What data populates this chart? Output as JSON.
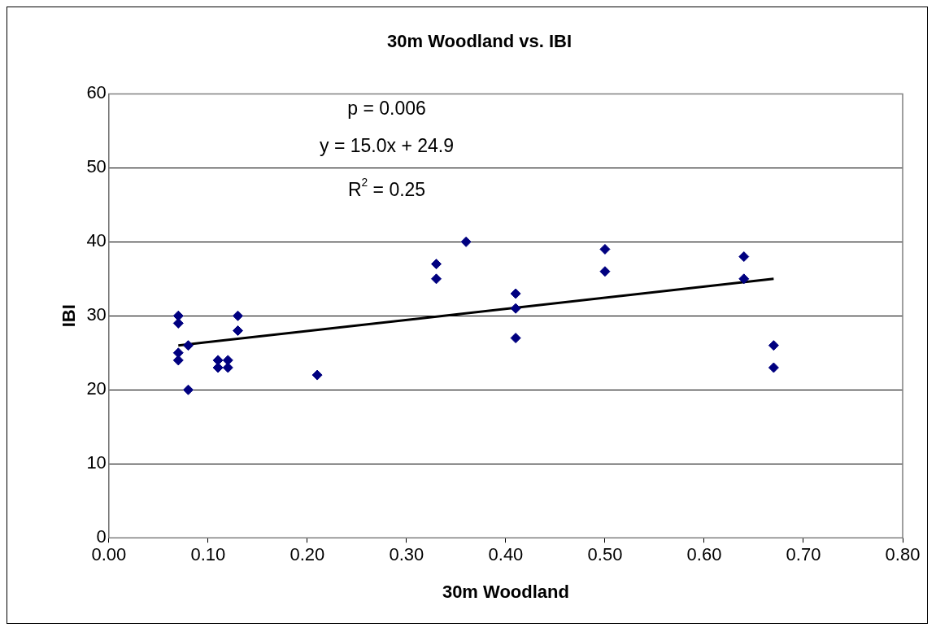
{
  "chart_data": {
    "type": "scatter",
    "title": "30m Woodland vs. IBI",
    "xlabel": "30m Woodland",
    "ylabel": "IBI",
    "series": [
      {
        "type": "scatter",
        "color": "#000080",
        "marker": "diamond",
        "x": [
          0.07,
          0.07,
          0.07,
          0.07,
          0.08,
          0.08,
          0.11,
          0.11,
          0.12,
          0.12,
          0.13,
          0.13,
          0.21,
          0.33,
          0.33,
          0.36,
          0.41,
          0.41,
          0.41,
          0.5,
          0.5,
          0.64,
          0.64,
          0.67,
          0.67
        ],
        "values": [
          30,
          29,
          25,
          24,
          26,
          20,
          24,
          23,
          24,
          23,
          30,
          28,
          22,
          37,
          35,
          40,
          33,
          31,
          27,
          39,
          36,
          38,
          35,
          26,
          23
        ]
      },
      {
        "type": "line",
        "color": "#000000",
        "line_style": "solid",
        "x": [
          0.07,
          0.67
        ],
        "values": [
          26,
          35
        ]
      }
    ],
    "annotations": [
      "p = 0.006",
      "y = 15.0x + 24.9",
      "R$^{2}$ = 0.25"
    ],
    "xlim": [
      0,
      0.8
    ],
    "xticks": [
      {
        "value": 0,
        "label": "0.00"
      },
      {
        "value": 0.1,
        "label": "0.10"
      },
      {
        "value": 0.2,
        "label": "0.20"
      },
      {
        "value": 0.3,
        "label": "0.30"
      },
      {
        "value": 0.4,
        "label": "0.40"
      },
      {
        "value": 0.5,
        "label": "0.50"
      },
      {
        "value": 0.6,
        "label": "0.60"
      },
      {
        "value": 0.7,
        "label": "0.70"
      },
      {
        "value": 0.8,
        "label": "0.80"
      }
    ],
    "ylim": [
      0,
      60
    ],
    "yticks": [
      0,
      10,
      20,
      30,
      40,
      50,
      60
    ],
    "grid": "y",
    "legend": false
  }
}
